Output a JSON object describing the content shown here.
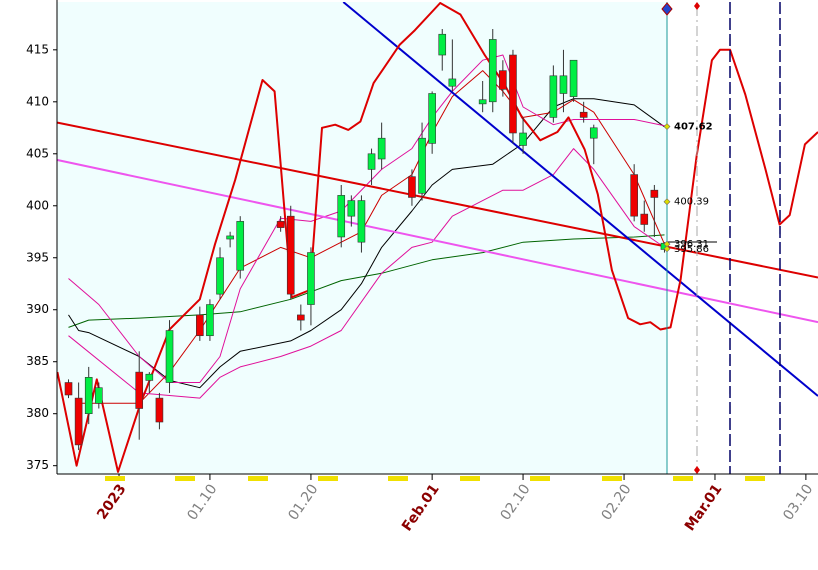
{
  "chart_data": {
    "type": "candlestick",
    "xlim": [
      -6.14,
      69.2
    ],
    "ylim": [
      374.2,
      419.6
    ],
    "yticks": [
      375,
      380,
      385,
      390,
      395,
      400,
      405,
      410,
      415
    ],
    "xticks": [
      {
        "value": 0,
        "label": "2023"
      },
      {
        "value": 9,
        "label": "01.10"
      },
      {
        "value": 19,
        "label": "01.20"
      },
      {
        "value": 31,
        "label": "Feb.01"
      },
      {
        "value": 40,
        "label": "02.10"
      },
      {
        "value": 50,
        "label": "02.20"
      },
      {
        "value": 59,
        "label": "Mar.01"
      },
      {
        "value": 68,
        "label": "03.10"
      }
    ],
    "xtick_colors": [
      "#8b0000",
      "#808080",
      "#808080",
      "#8b0000",
      "#808080",
      "#808080",
      "#8b0000",
      "#808080"
    ],
    "up_color": "#00ee44",
    "down_color": "#ee0000",
    "x": [
      -5,
      -4,
      -3,
      -2,
      2,
      3,
      4,
      5,
      8,
      9,
      10,
      11,
      12,
      16,
      17,
      18,
      19,
      22,
      23,
      24,
      25,
      26,
      29,
      30,
      31,
      32,
      33,
      36,
      37,
      38,
      39,
      40,
      43,
      44,
      45,
      46,
      47,
      51,
      52,
      53,
      54
    ],
    "open": [
      383,
      381.5,
      380,
      381,
      384,
      383.2,
      381.5,
      383,
      389.5,
      387.5,
      391.5,
      396.8,
      393.8,
      398.5,
      399,
      389.5,
      390.5,
      397,
      399,
      396.5,
      403.5,
      404.5,
      402.8,
      401.2,
      406,
      414.5,
      411.5,
      409.8,
      410,
      413,
      414.5,
      405.8,
      408.5,
      410.8,
      410.5,
      409,
      406.5,
      403,
      399.2,
      401.5,
      395.8
    ],
    "high": [
      383.3,
      383,
      384.5,
      383,
      386,
      384,
      382,
      389,
      390.3,
      391,
      396,
      397.5,
      399,
      399,
      400,
      390.5,
      396,
      402,
      401,
      401,
      405.5,
      408,
      403.5,
      408,
      411,
      417,
      416,
      412,
      417,
      414,
      415,
      408.5,
      413.5,
      415,
      414,
      410,
      407.8,
      404,
      400.5,
      402,
      396.5
    ],
    "low": [
      381.5,
      376.5,
      379,
      380.5,
      377.5,
      382,
      378.5,
      382,
      387,
      387,
      391,
      396,
      393,
      397.5,
      391,
      388,
      388.5,
      396,
      398,
      395.5,
      402,
      403.5,
      400,
      400.5,
      405,
      413,
      411,
      409,
      409,
      410.5,
      406,
      405,
      408,
      409,
      410,
      408,
      404,
      398.5,
      397.5,
      397,
      395.5
    ],
    "close": [
      381.8,
      377,
      383.5,
      382.5,
      380.5,
      383.8,
      379.2,
      388,
      387.5,
      390.5,
      395,
      397.1,
      398.5,
      397.9,
      391.5,
      389,
      395.5,
      401,
      400.5,
      400.5,
      405,
      406.5,
      400.8,
      406.5,
      410.8,
      416.5,
      412.2,
      410.2,
      416,
      411.2,
      407,
      407,
      412.5,
      412.5,
      414,
      408.5,
      407.5,
      399,
      398.2,
      400.8,
      396.4
    ],
    "lines": [
      {
        "color": "#006400",
        "x": [
          -5,
          -3,
          2,
          8,
          12,
          17,
          22,
          26,
          31,
          36,
          40,
          45,
          51,
          54
        ],
        "values": [
          388.3,
          389,
          389.2,
          389.5,
          389.8,
          391,
          392.8,
          393.5,
          394.8,
          395.5,
          396.5,
          396.8,
          397,
          397.2
        ]
      },
      {
        "color": "#000000",
        "x": [
          -5,
          -4,
          -3,
          2,
          5,
          8,
          10,
          12,
          17,
          19,
          22,
          24,
          26,
          29,
          31,
          33,
          37,
          40,
          43,
          45,
          47,
          51,
          54
        ],
        "values": [
          389.5,
          388,
          387.8,
          385.5,
          383.2,
          382.5,
          384.5,
          386,
          387,
          388,
          390,
          392.5,
          396,
          399.5,
          402,
          403.5,
          404,
          406,
          409.5,
          410.3,
          410.3,
          409.7,
          407.6
        ]
      },
      {
        "color": "#cc0000",
        "x": [
          -4,
          2,
          5,
          8,
          10,
          12,
          16,
          19,
          22,
          24,
          26,
          29,
          31,
          33,
          36,
          38,
          40,
          43,
          45,
          47,
          51,
          54
        ],
        "values": [
          381,
          381,
          384,
          388,
          391,
          394,
          396,
          395,
          396.5,
          397.5,
          401,
          403,
          407,
          410.5,
          413,
          411,
          408.5,
          409,
          410.2,
          409,
          403,
          396.3
        ]
      },
      {
        "color": "#e0109a",
        "x": [
          -5,
          -2,
          2,
          5,
          8,
          10,
          12,
          16,
          19,
          22,
          26,
          29,
          31,
          33,
          36,
          38,
          40,
          43,
          45,
          51,
          54
        ],
        "values": [
          393,
          390.5,
          385.5,
          383,
          383,
          385.5,
          392,
          398.8,
          398.5,
          399.5,
          403.5,
          405.5,
          408.5,
          411,
          414,
          414.5,
          409.5,
          407.8,
          408.3,
          408.3,
          407.7
        ]
      },
      {
        "color": "#e0109a",
        "x": [
          -5,
          2,
          8,
          10,
          12,
          16,
          19,
          22,
          26,
          29,
          31,
          33,
          36,
          38,
          40,
          43,
          45,
          47,
          51,
          54
        ],
        "values": [
          387.5,
          382,
          381.5,
          383.5,
          384.5,
          385.5,
          386.5,
          388,
          393.5,
          396,
          396.5,
          399,
          400.5,
          401.5,
          401.5,
          403,
          405.5,
          403.5,
          398,
          396
        ]
      }
    ],
    "bold_lines": [
      {
        "color": "#dd0000",
        "x": [
          -6.1,
          69.2
        ],
        "values": [
          408.0,
          393.1
        ]
      },
      {
        "color": "#ee55ee",
        "x": [
          -6.1,
          69.2
        ],
        "values": [
          404.4,
          388.8
        ]
      },
      {
        "color": "#0000cc",
        "x": [
          22.2,
          69.2
        ],
        "values": [
          419.6,
          381.7
        ]
      },
      {
        "color": "#dd0000",
        "x": [
          -6.1,
          -4.2,
          -2.2,
          -0.1,
          2.1,
          5.0,
          8.0,
          9.5,
          11.5,
          14.2,
          15.4,
          17.1,
          18.9,
          20.1,
          21.4,
          22.7,
          23.9,
          25.2,
          27.8,
          29.3,
          31.8,
          33.8,
          36.2,
          38.2,
          39.9,
          41.7,
          43.4,
          44.5,
          46.1,
          47.4,
          48.8,
          50.4,
          51.6,
          52.6,
          53.6,
          54.6,
          55.6,
          57.2,
          58.7,
          59.5,
          60.5,
          62.0,
          64.0,
          65.4,
          66.4,
          67.9,
          69.2
        ],
        "values": [
          384.0,
          375.0,
          383.3,
          374.4,
          380.9,
          388.1,
          391.0,
          396.3,
          402.5,
          412.1,
          411.0,
          391.2,
          391.9,
          407.5,
          407.8,
          407.3,
          408.1,
          411.8,
          415.5,
          416.9,
          419.5,
          418.4,
          414.5,
          411.6,
          408.5,
          406.3,
          407.1,
          408.5,
          405.4,
          401.1,
          393.8,
          389.2,
          388.6,
          388.8,
          388.1,
          388.3,
          392.9,
          404.9,
          414.0,
          415.0,
          415.0,
          410.7,
          403.5,
          398.2,
          399.1,
          405.9,
          407.1
        ]
      }
    ],
    "annotations": [
      {
        "text": "407.62",
        "value": 407.62
      },
      {
        "text": "400.39",
        "value": 400.39
      },
      {
        "text": "396.31",
        "value": 396.31
      },
      {
        "text": "395.86",
        "value": 395.86
      }
    ]
  }
}
